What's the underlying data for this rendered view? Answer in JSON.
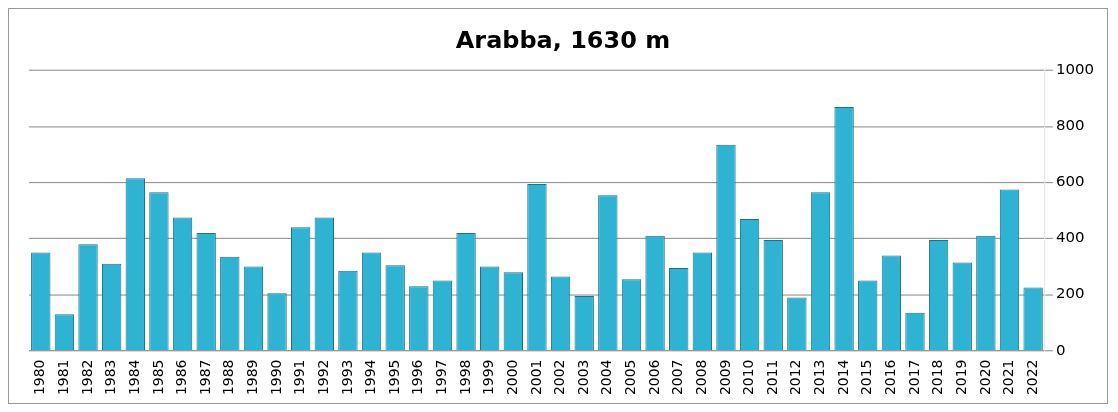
{
  "chart_data": {
    "type": "bar",
    "title": "Arabba, 1630 m",
    "categories": [
      "1980",
      "1981",
      "1982",
      "1983",
      "1984",
      "1985",
      "1986",
      "1987",
      "1988",
      "1989",
      "1990",
      "1991",
      "1992",
      "1993",
      "1994",
      "1995",
      "1996",
      "1997",
      "1998",
      "1999",
      "2000",
      "2001",
      "2002",
      "2003",
      "2004",
      "2005",
      "2006",
      "2007",
      "2008",
      "2009",
      "2010",
      "2011",
      "2012",
      "2013",
      "2014",
      "2015",
      "2016",
      "2017",
      "2018",
      "2019",
      "2020",
      "2021",
      "2022"
    ],
    "values": [
      350,
      130,
      380,
      310,
      615,
      565,
      475,
      420,
      335,
      300,
      205,
      440,
      475,
      285,
      350,
      305,
      230,
      250,
      420,
      300,
      280,
      595,
      265,
      195,
      555,
      255,
      410,
      295,
      350,
      735,
      470,
      395,
      190,
      565,
      870,
      250,
      340,
      135,
      395,
      315,
      410,
      575,
      225
    ],
    "color": "#2fb3d3",
    "ylim": [
      0,
      1000
    ],
    "yticks": [
      0,
      200,
      400,
      600,
      800,
      1000
    ],
    "grid": "y",
    "legend": false
  }
}
